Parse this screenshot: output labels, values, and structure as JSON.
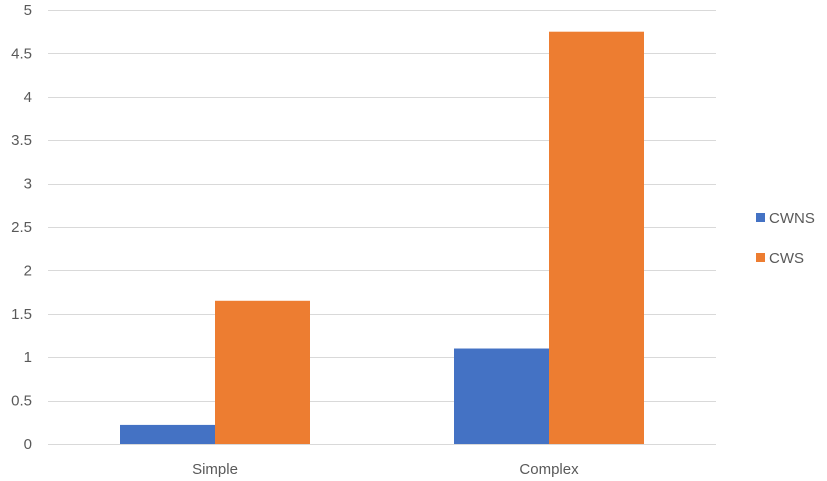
{
  "chart_data": {
    "type": "bar",
    "categories": [
      "Simple",
      "Complex"
    ],
    "series": [
      {
        "name": "CWNS",
        "values": [
          0.22,
          1.1
        ],
        "color": "#4472C4"
      },
      {
        "name": "CWS",
        "values": [
          1.65,
          4.75
        ],
        "color": "#ED7D31"
      }
    ],
    "title": "",
    "xlabel": "",
    "ylabel": "",
    "ylim": [
      0,
      5
    ],
    "yticks": [
      "0",
      "0.5",
      "1",
      "1.5",
      "2",
      "2.5",
      "3",
      "3.5",
      "4",
      "4.5",
      "5"
    ],
    "grid": true,
    "gridColor": "#D9D9D9",
    "legend": "right"
  }
}
